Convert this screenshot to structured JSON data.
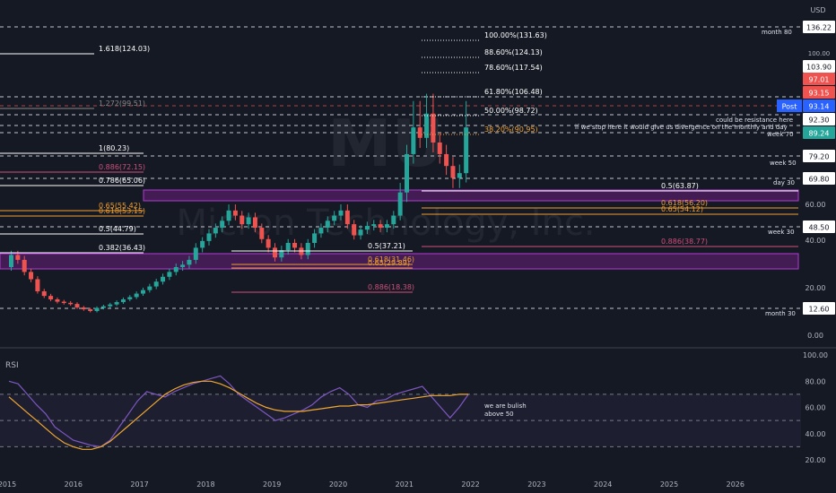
{
  "watermark": {
    "ticker": "MU",
    "company": "Micron Technology, Inc."
  },
  "currency": "USD",
  "colors": {
    "background": "#151924",
    "bull": "#26a69a",
    "bear": "#ef5350",
    "zone_fill": "#4a1d5c",
    "zone_border": "#b23bd6",
    "fib_orange": "#f0a030",
    "fib_pink": "#d04f7a",
    "rsi_line": "#7e57c2",
    "rsi_ma": "#f0a830",
    "white": "#e0e3eb"
  },
  "chart_data": [
    {
      "type": "candlestick",
      "title": "",
      "price_scale": {
        "log": true,
        "ticks": [
          0.0,
          20.0,
          40.0,
          60.0
        ]
      },
      "x_ticks": [
        "2015",
        "2016",
        "2017",
        "2018",
        "2019",
        "2020",
        "2021",
        "2022",
        "2023",
        "2024",
        "2025",
        "2026"
      ],
      "candles_approx": [
        {
          "t": 2015.0,
          "o": 30,
          "c": 35
        },
        {
          "t": 2015.1,
          "o": 35,
          "c": 33
        },
        {
          "t": 2015.2,
          "o": 33,
          "c": 28
        },
        {
          "t": 2015.3,
          "o": 28,
          "c": 25
        },
        {
          "t": 2015.4,
          "o": 25,
          "c": 20
        },
        {
          "t": 2015.5,
          "o": 20,
          "c": 18
        },
        {
          "t": 2015.6,
          "o": 18,
          "c": 16.5
        },
        {
          "t": 2015.7,
          "o": 16.5,
          "c": 15.5
        },
        {
          "t": 2015.8,
          "o": 15.5,
          "c": 15
        },
        {
          "t": 2015.9,
          "o": 15,
          "c": 14.5
        },
        {
          "t": 2016.0,
          "o": 14.5,
          "c": 13
        },
        {
          "t": 2016.1,
          "o": 13,
          "c": 12.2
        },
        {
          "t": 2016.2,
          "o": 12.2,
          "c": 11.5
        },
        {
          "t": 2016.3,
          "o": 11.5,
          "c": 12.8
        },
        {
          "t": 2016.4,
          "o": 12.8,
          "c": 13.5
        },
        {
          "t": 2016.5,
          "o": 13.5,
          "c": 14.3
        },
        {
          "t": 2016.6,
          "o": 14.3,
          "c": 15.3
        },
        {
          "t": 2016.7,
          "o": 15.3,
          "c": 16.5
        },
        {
          "t": 2016.8,
          "o": 16.5,
          "c": 17.5
        },
        {
          "t": 2016.9,
          "o": 17.5,
          "c": 19
        },
        {
          "t": 2017.0,
          "o": 19,
          "c": 20.5
        },
        {
          "t": 2017.1,
          "o": 20.5,
          "c": 22
        },
        {
          "t": 2017.2,
          "o": 22,
          "c": 24
        },
        {
          "t": 2017.3,
          "o": 24,
          "c": 26
        },
        {
          "t": 2017.4,
          "o": 26,
          "c": 28
        },
        {
          "t": 2017.5,
          "o": 28,
          "c": 30
        },
        {
          "t": 2017.6,
          "o": 30,
          "c": 31
        },
        {
          "t": 2017.7,
          "o": 31,
          "c": 33
        },
        {
          "t": 2017.8,
          "o": 33,
          "c": 38
        },
        {
          "t": 2017.9,
          "o": 38,
          "c": 41
        },
        {
          "t": 2018.0,
          "o": 41,
          "c": 45
        },
        {
          "t": 2018.1,
          "o": 45,
          "c": 48
        },
        {
          "t": 2018.2,
          "o": 48,
          "c": 52
        },
        {
          "t": 2018.3,
          "o": 52,
          "c": 58
        },
        {
          "t": 2018.4,
          "o": 58,
          "c": 55
        },
        {
          "t": 2018.5,
          "o": 55,
          "c": 50
        },
        {
          "t": 2018.6,
          "o": 50,
          "c": 54
        },
        {
          "t": 2018.7,
          "o": 54,
          "c": 48
        },
        {
          "t": 2018.8,
          "o": 48,
          "c": 42
        },
        {
          "t": 2018.9,
          "o": 42,
          "c": 38
        },
        {
          "t": 2019.0,
          "o": 38,
          "c": 34
        },
        {
          "t": 2019.1,
          "o": 34,
          "c": 37
        },
        {
          "t": 2019.2,
          "o": 37,
          "c": 40
        },
        {
          "t": 2019.3,
          "o": 40,
          "c": 38
        },
        {
          "t": 2019.4,
          "o": 38,
          "c": 35
        },
        {
          "t": 2019.5,
          "o": 35,
          "c": 40
        },
        {
          "t": 2019.6,
          "o": 40,
          "c": 45
        },
        {
          "t": 2019.7,
          "o": 45,
          "c": 48
        },
        {
          "t": 2019.8,
          "o": 48,
          "c": 52
        },
        {
          "t": 2019.9,
          "o": 52,
          "c": 55
        },
        {
          "t": 2020.0,
          "o": 55,
          "c": 58
        },
        {
          "t": 2020.1,
          "o": 58,
          "c": 50
        },
        {
          "t": 2020.2,
          "o": 50,
          "c": 44
        },
        {
          "t": 2020.3,
          "o": 44,
          "c": 47
        },
        {
          "t": 2020.4,
          "o": 47,
          "c": 49
        },
        {
          "t": 2020.5,
          "o": 49,
          "c": 50
        },
        {
          "t": 2020.6,
          "o": 50,
          "c": 48
        },
        {
          "t": 2020.7,
          "o": 48,
          "c": 50
        },
        {
          "t": 2020.8,
          "o": 50,
          "c": 55
        },
        {
          "t": 2020.9,
          "o": 55,
          "c": 65
        },
        {
          "t": 2021.0,
          "o": 65,
          "c": 80
        },
        {
          "t": 2021.1,
          "o": 80,
          "c": 90
        },
        {
          "t": 2021.2,
          "o": 90,
          "c": 87
        },
        {
          "t": 2021.3,
          "o": 87,
          "c": 92
        },
        {
          "t": 2021.4,
          "o": 92,
          "c": 85
        },
        {
          "t": 2021.5,
          "o": 85,
          "c": 80
        },
        {
          "t": 2021.6,
          "o": 80,
          "c": 75
        },
        {
          "t": 2021.7,
          "o": 75,
          "c": 70
        },
        {
          "t": 2021.8,
          "o": 70,
          "c": 72
        },
        {
          "t": 2021.9,
          "o": 72,
          "c": 90
        }
      ],
      "fib_labels": [
        {
          "text": "1.618(124.03)",
          "price": 124.03,
          "color": "#ffffff"
        },
        {
          "text": "1.272(99.51)",
          "price": 99.51,
          "color": "#888888"
        },
        {
          "text": "1(80.23)",
          "price": 80.23,
          "color": "#ffffff"
        },
        {
          "text": "0.886(72.15)",
          "price": 72.15,
          "color": "#d04f7a"
        },
        {
          "text": "0.786(65.06)",
          "price": 65.06,
          "color": "#ffffff"
        },
        {
          "text": "0.65(55.42)",
          "price": 55.42,
          "color": "#f0a030"
        },
        {
          "text": "0.618(53.15)",
          "price": 53.15,
          "color": "#f0a030"
        },
        {
          "text": "0.5(44.79)",
          "price": 44.79,
          "color": "#ffffff"
        },
        {
          "text": "0.382(36.43)",
          "price": 36.43,
          "color": "#ffffff"
        },
        {
          "text": "0.5(37.21)",
          "price": 37.21,
          "color": "#ffffff"
        },
        {
          "text": "0.618(31.46)",
          "price": 31.46,
          "color": "#f0a030"
        },
        {
          "text": "0.65(29.89)",
          "price": 29.89,
          "color": "#f0a030"
        },
        {
          "text": "0.886(18.38)",
          "price": 18.38,
          "color": "#d04f7a"
        },
        {
          "text": "100.00%(131.63)",
          "price": 131.63,
          "color": "#ffffff"
        },
        {
          "text": "88.60%(124.13)",
          "price": 124.13,
          "color": "#ffffff"
        },
        {
          "text": "78.60%(117.54)",
          "price": 117.54,
          "color": "#ffffff"
        },
        {
          "text": "61.80%(106.48)",
          "price": 106.48,
          "color": "#ffffff"
        },
        {
          "text": "50.00%(98.72)",
          "price": 98.72,
          "color": "#ffffff"
        },
        {
          "text": "38.20%(90.95)",
          "price": 90.95,
          "color": "#f0a030"
        },
        {
          "text": "0.5(63.87)",
          "price": 63.87,
          "color": "#ffffff"
        },
        {
          "text": "0.618(56.20)",
          "price": 56.2,
          "color": "#f0a030"
        },
        {
          "text": "0.65(54.12)",
          "price": 54.12,
          "color": "#f0a030"
        },
        {
          "text": "0.886(38.77)",
          "price": 38.77,
          "color": "#d04f7a"
        }
      ],
      "level_labels": [
        {
          "text": "month 80",
          "price": 136.22
        },
        {
          "text": "could be resistance here",
          "price": 93.5
        },
        {
          "text": "if we stop here it would give us divergence on the monthly and day",
          "price": 90.6
        },
        {
          "text": "week 70",
          "price": 89.24
        },
        {
          "text": "week 50",
          "price": 79.2
        },
        {
          "text": "day 30",
          "price": 69.8
        },
        {
          "text": "week 30",
          "price": 48.5
        },
        {
          "text": "month 30",
          "price": 12.6
        }
      ],
      "price_tags": [
        {
          "text": "136.22",
          "bg": "#ffffff",
          "fg": "#151924"
        },
        {
          "text": "103.90",
          "bg": "#ffffff",
          "fg": "#151924"
        },
        {
          "text": "97.01",
          "bg": "#ef5350",
          "fg": "#ffffff"
        },
        {
          "text": "93.15",
          "bg": "#ef5350",
          "fg": "#ffffff"
        },
        {
          "text": "93.14",
          "bg": "#2962ff",
          "fg": "#ffffff",
          "prefix": "Post"
        },
        {
          "text": "92.30",
          "bg": "#ffffff",
          "fg": "#151924"
        },
        {
          "text": "89.24",
          "bg": "#26a69a",
          "fg": "#ffffff"
        },
        {
          "text": "79.20",
          "bg": "#ffffff",
          "fg": "#151924"
        },
        {
          "text": "69.80",
          "bg": "#ffffff",
          "fg": "#151924"
        },
        {
          "text": "48.50",
          "bg": "#ffffff",
          "fg": "#151924"
        },
        {
          "text": "12.60",
          "bg": "#ffffff",
          "fg": "#151924"
        }
      ],
      "partial_tag": "100.00",
      "zones": [
        {
          "low": 58,
          "high": 65
        },
        {
          "low": 29,
          "high": 35
        }
      ]
    },
    {
      "type": "line",
      "title": "RSI",
      "y_ticks": [
        100.0,
        80.0,
        60.0,
        40.0,
        20.0
      ],
      "bands": [
        70,
        50,
        30
      ],
      "annotation": "we are bulish above 50",
      "series": [
        {
          "name": "",
          "values": [
            80,
            78,
            70,
            62,
            55,
            45,
            40,
            35,
            33,
            31,
            30,
            35,
            45,
            55,
            65,
            72,
            70,
            68,
            72,
            75,
            78,
            80,
            82,
            84,
            78,
            70,
            65,
            60,
            55,
            50,
            52,
            55,
            58,
            62,
            68,
            72,
            75,
            70,
            62,
            60,
            65,
            66,
            70,
            72,
            74,
            76,
            68,
            60,
            52,
            60,
            70
          ]
        },
        {
          "name": "",
          "values": [
            68,
            62,
            56,
            50,
            44,
            38,
            33,
            30,
            28,
            28,
            30,
            34,
            40,
            46,
            52,
            58,
            64,
            70,
            74,
            77,
            79,
            80,
            80,
            78,
            75,
            71,
            67,
            63,
            60,
            58,
            57,
            57,
            57,
            58,
            59,
            60,
            61,
            61,
            62,
            62,
            63,
            64,
            65,
            66,
            67,
            68,
            69,
            69,
            69,
            70,
            70
          ]
        }
      ]
    }
  ],
  "rsi_label": "RSI",
  "annotation_lines": [
    "we are bulish",
    "above 50"
  ]
}
